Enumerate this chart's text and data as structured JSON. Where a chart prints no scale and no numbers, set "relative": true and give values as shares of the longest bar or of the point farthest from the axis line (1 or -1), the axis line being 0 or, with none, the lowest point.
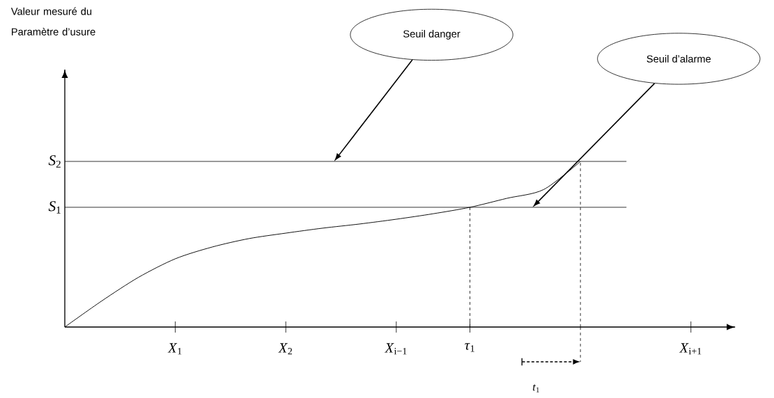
{
  "chart_data": {
    "type": "line",
    "relative": true,
    "ylabel": "Valeur mesuré du Paramètre d’usure",
    "categories": [
      null,
      null,
      null,
      "*X*$_{1}$",
      null,
      null,
      "*X*$_{2}$",
      null,
      null,
      "*X*$_{i−1}$",
      null,
      "*τ*$_{1}$",
      null,
      null,
      null,
      null,
      null,
      "*X*$_{i+1}$"
    ],
    "series": [
      {
        "color": "#000000",
        "values": [
          0,
          0.157,
          0.3,
          0.412,
          0.483,
          0.534,
          0.567,
          0.597,
          0.622,
          0.651,
          0.684,
          0.723,
          0.777,
          0.83,
          1,
          null,
          null,
          null
        ]
      }
    ],
    "ref_lines": [
      {
        "axis": "y",
        "value": 0.723,
        "label": "*S*$_{1}$"
      },
      {
        "axis": "y",
        "value": 1,
        "label": "*S*$_{2}$"
      }
    ],
    "annotations": [
      "Seuil danger",
      "Seuil d’alarme",
      "*t*$_{1}$"
    ],
    "legend": false,
    "marker": "none",
    "line_style": "solid"
  }
}
